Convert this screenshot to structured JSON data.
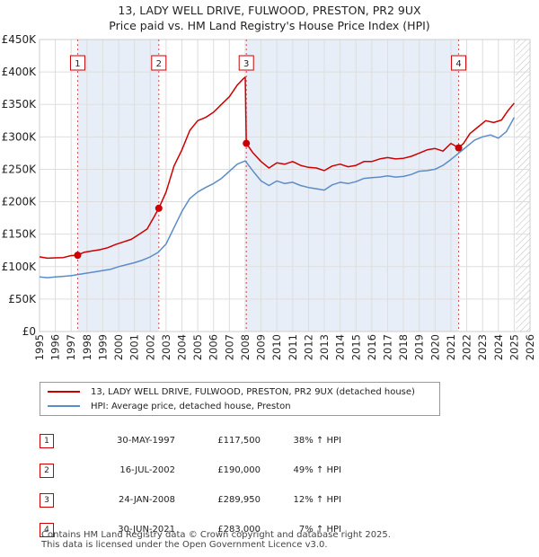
{
  "title_line1": "13, LADY WELL DRIVE, FULWOOD, PRESTON, PR2 9UX",
  "title_line2": "Price paid vs. HM Land Registry's House Price Index (HPI)",
  "colors": {
    "property": "#cc0000",
    "hpi": "#5b8cc8",
    "shade": "#e8eef8",
    "grid": "#dddddd"
  },
  "legend": {
    "property_label": "13, LADY WELL DRIVE, FULWOOD, PRESTON, PR2 9UX (detached house)",
    "hpi_label": "HPI: Average price, detached house, Preston"
  },
  "sales": [
    {
      "num": "1",
      "date": "30-MAY-1997",
      "price": "£117,500",
      "hpi_change": "38% ↑ HPI"
    },
    {
      "num": "2",
      "date": "16-JUL-2002",
      "price": "£190,000",
      "hpi_change": "49% ↑ HPI"
    },
    {
      "num": "3",
      "date": "24-JAN-2008",
      "price": "£289,950",
      "hpi_change": "12% ↑ HPI"
    },
    {
      "num": "4",
      "date": "30-JUN-2021",
      "price": "£283,000",
      "hpi_change": "7% ↑ HPI"
    }
  ],
  "footer_line1": "Contains HM Land Registry data © Crown copyright and database right 2025.",
  "footer_line2": "This data is licensed under the Open Government Licence v3.0.",
  "chart_data": {
    "type": "line",
    "title": "13, LADY WELL DRIVE, FULWOOD, PRESTON, PR2 9UX — Price paid vs. HM Land Registry's House Price Index (HPI)",
    "xlabel": "",
    "ylabel": "",
    "xlim": [
      1995,
      2026
    ],
    "ylim": [
      0,
      450000
    ],
    "x_ticks": [
      1995,
      1996,
      1997,
      1998,
      1999,
      2000,
      2001,
      2002,
      2003,
      2004,
      2005,
      2006,
      2007,
      2008,
      2009,
      2010,
      2011,
      2012,
      2013,
      2014,
      2015,
      2016,
      2017,
      2018,
      2019,
      2020,
      2021,
      2022,
      2023,
      2024,
      2025,
      2026
    ],
    "y_ticks": [
      {
        "value": 0,
        "label": "£0"
      },
      {
        "value": 50000,
        "label": "£50K"
      },
      {
        "value": 100000,
        "label": "£100K"
      },
      {
        "value": 150000,
        "label": "£150K"
      },
      {
        "value": 200000,
        "label": "£200K"
      },
      {
        "value": 250000,
        "label": "£250K"
      },
      {
        "value": 300000,
        "label": "£300K"
      },
      {
        "value": 350000,
        "label": "£350K"
      },
      {
        "value": 400000,
        "label": "£400K"
      },
      {
        "value": 450000,
        "label": "£450K"
      }
    ],
    "grid": true,
    "shaded_ranges": [
      [
        1997.41,
        2002.54
      ],
      [
        2008.07,
        2021.49
      ]
    ],
    "forecast_from": 2025.1,
    "series": [
      {
        "name": "13, LADY WELL DRIVE, FULWOOD, PRESTON, PR2 9UX (detached house)",
        "x": [
          1995.0,
          1995.5,
          1996.0,
          1996.5,
          1997.0,
          1997.41,
          1997.8,
          1998.3,
          1998.8,
          1999.3,
          1999.8,
          2000.3,
          2000.8,
          2001.3,
          2001.8,
          2002.2,
          2002.54,
          2003.0,
          2003.5,
          2004.0,
          2004.5,
          2005.0,
          2005.5,
          2006.0,
          2006.5,
          2007.0,
          2007.5,
          2007.9,
          2008.0,
          2008.07,
          2008.5,
          2009.0,
          2009.5,
          2010.0,
          2010.5,
          2011.0,
          2011.5,
          2012.0,
          2012.5,
          2013.0,
          2013.5,
          2014.0,
          2014.5,
          2015.0,
          2015.5,
          2016.0,
          2016.5,
          2017.0,
          2017.5,
          2018.0,
          2018.5,
          2019.0,
          2019.5,
          2020.0,
          2020.5,
          2021.0,
          2021.49,
          2021.8,
          2022.2,
          2022.7,
          2023.2,
          2023.7,
          2024.2,
          2024.6,
          2025.0
        ],
        "values": [
          115000,
          113000,
          113500,
          114000,
          117000,
          117500,
          122000,
          124000,
          126000,
          129000,
          134000,
          138000,
          142000,
          150000,
          158000,
          175000,
          190000,
          215000,
          255000,
          280000,
          310000,
          325000,
          330000,
          338000,
          350000,
          362000,
          380000,
          390000,
          392000,
          289950,
          275000,
          262000,
          252000,
          260000,
          258000,
          262000,
          256000,
          253000,
          252000,
          248000,
          255000,
          258000,
          254000,
          256000,
          262000,
          262000,
          266000,
          268000,
          266000,
          267000,
          270000,
          275000,
          280000,
          282000,
          278000,
          290000,
          283000,
          290000,
          305000,
          315000,
          325000,
          322000,
          326000,
          340000,
          352000
        ]
      },
      {
        "name": "HPI: Average price, detached house, Preston",
        "x": [
          1995.0,
          1995.5,
          1996.0,
          1996.5,
          1997.0,
          1997.5,
          1998.0,
          1998.5,
          1999.0,
          1999.5,
          2000.0,
          2000.5,
          2001.0,
          2001.5,
          2002.0,
          2002.5,
          2003.0,
          2003.5,
          2004.0,
          2004.5,
          2005.0,
          2005.5,
          2006.0,
          2006.5,
          2007.0,
          2007.5,
          2008.0,
          2008.5,
          2009.0,
          2009.5,
          2010.0,
          2010.5,
          2011.0,
          2011.5,
          2012.0,
          2012.5,
          2013.0,
          2013.5,
          2014.0,
          2014.5,
          2015.0,
          2015.5,
          2016.0,
          2016.5,
          2017.0,
          2017.5,
          2018.0,
          2018.5,
          2019.0,
          2019.5,
          2020.0,
          2020.5,
          2021.0,
          2021.5,
          2022.0,
          2022.5,
          2023.0,
          2023.5,
          2024.0,
          2024.5,
          2025.0
        ],
        "values": [
          84000,
          83000,
          84000,
          85000,
          86000,
          88000,
          90000,
          92000,
          94000,
          96000,
          100000,
          103000,
          106000,
          110000,
          115000,
          122000,
          135000,
          160000,
          185000,
          205000,
          215000,
          222000,
          228000,
          236000,
          247000,
          258000,
          263000,
          247000,
          232000,
          225000,
          232000,
          228000,
          230000,
          225000,
          222000,
          220000,
          218000,
          226000,
          230000,
          228000,
          231000,
          236000,
          237000,
          238000,
          240000,
          238000,
          239000,
          242000,
          247000,
          248000,
          250000,
          256000,
          265000,
          275000,
          285000,
          295000,
          300000,
          303000,
          298000,
          308000,
          330000
        ]
      }
    ],
    "sale_markers": [
      {
        "label": "1",
        "x": 1997.41,
        "value": 117500
      },
      {
        "label": "2",
        "x": 2002.54,
        "value": 190000
      },
      {
        "label": "3",
        "x": 2008.07,
        "value": 289950
      },
      {
        "label": "4",
        "x": 2021.49,
        "value": 283000
      }
    ]
  }
}
